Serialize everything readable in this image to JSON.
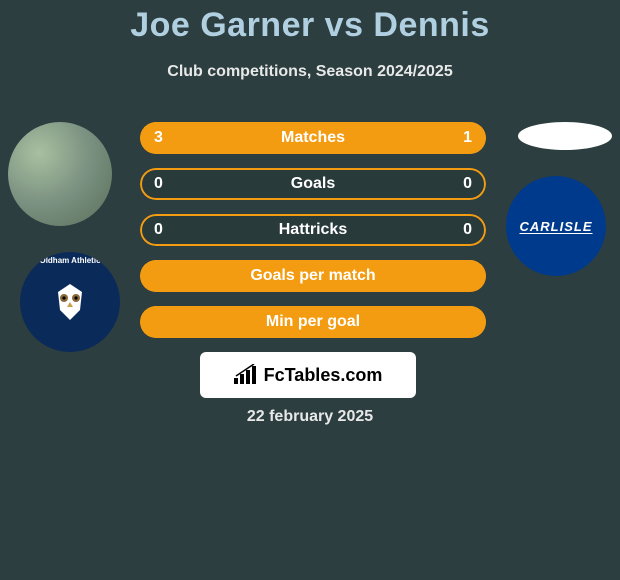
{
  "header": {
    "title": "Joe Garner vs Dennis",
    "subtitle": "Club competitions, Season 2024/2025",
    "title_color": "#b0cfe0",
    "subtitle_color": "#e8e8e8"
  },
  "players": {
    "left": {
      "name": "Joe Garner",
      "club_ring_text": "Oldham Athletic"
    },
    "right": {
      "name": "Dennis",
      "club_label": "CARLISLE"
    }
  },
  "stats": {
    "rows": [
      {
        "label": "Matches",
        "left_value": "3",
        "right_value": "1",
        "left_width_pct": 72,
        "right_width_pct": 28
      },
      {
        "label": "Goals",
        "left_value": "0",
        "right_value": "0",
        "left_width_pct": 0,
        "right_width_pct": 0
      },
      {
        "label": "Hattricks",
        "left_value": "0",
        "right_value": "0",
        "left_width_pct": 0,
        "right_width_pct": 0
      },
      {
        "label": "Goals per match",
        "left_value": "",
        "right_value": "",
        "left_width_pct": 100,
        "right_width_pct": 0
      },
      {
        "label": "Min per goal",
        "left_value": "",
        "right_value": "",
        "left_width_pct": 100,
        "right_width_pct": 0
      }
    ],
    "bar_color": "#f39c12",
    "text_color": "#ffffff"
  },
  "watermark": {
    "text": "FcTables.com"
  },
  "footer": {
    "date": "22 february 2025"
  },
  "theme": {
    "background_color": "#2c3e3f"
  }
}
